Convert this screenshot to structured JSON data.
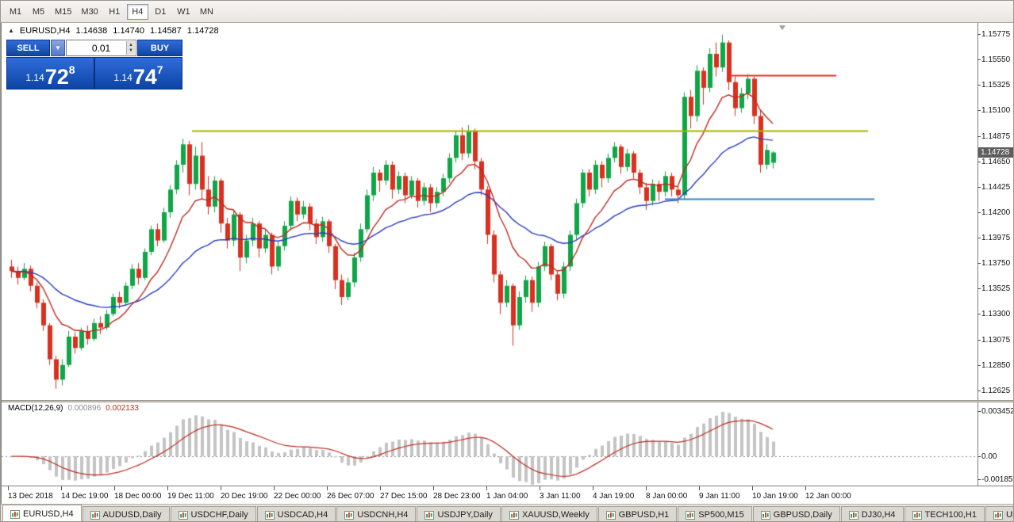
{
  "toolbar": {
    "timeframes": [
      {
        "label": "M1",
        "active": false
      },
      {
        "label": "M5",
        "active": false
      },
      {
        "label": "M15",
        "active": false
      },
      {
        "label": "M30",
        "active": false
      },
      {
        "label": "H1",
        "active": false
      },
      {
        "label": "H4",
        "active": true
      },
      {
        "label": "D1",
        "active": false
      },
      {
        "label": "W1",
        "active": false
      },
      {
        "label": "MN",
        "active": false
      }
    ]
  },
  "chart": {
    "ohlc": {
      "symbol": "EURUSD,H4",
      "open": "1.14638",
      "high": "1.14740",
      "low": "1.14587",
      "close": "1.14728"
    },
    "price_scale_labels": [
      "1.15775",
      "1.15550",
      "1.15325",
      "1.15100",
      "1.14875",
      "1.14650",
      "1.14425",
      "1.14200",
      "1.13975",
      "1.13750",
      "1.13525",
      "1.13300",
      "1.13075",
      "1.12850",
      "1.12625"
    ],
    "current_price": "1.14728",
    "axis": {
      "price_top": 1.15873,
      "price_bottom": 1.1254
    },
    "colors": {
      "up": "#0fa648",
      "down": "#d9301f",
      "ma_fast": "#bf2b20",
      "ma_slow": "#2a3cc4",
      "hline_olive": "#a9b400",
      "hline_red": "#e03226",
      "hline_blue": "#2e86c8",
      "hist": "#c4c4c4",
      "signal": "#bf2b20",
      "badge_bg": "#5e5e5e"
    },
    "overlays": [
      {
        "name": "horizontal-line-olive",
        "color_key": "hline_olive",
        "price": 1.1492,
        "i1": 28.5,
        "i2": 135
      },
      {
        "name": "horizontal-line-red",
        "color_key": "hline_red",
        "price": 1.1541,
        "i1": 113,
        "i2": 130
      },
      {
        "name": "horizontal-line-blue",
        "color_key": "hline_blue",
        "price": 1.1432,
        "i1": 103,
        "i2": 136
      }
    ],
    "ma_fast_period": 10,
    "ma_slow_period": 30
  },
  "chart_data": {
    "type": "candlestick",
    "symbol": "EURUSD",
    "timeframe": "H4",
    "candles": [
      [
        1.1372,
        1.1378,
        1.1362,
        1.1368
      ],
      [
        1.1368,
        1.1372,
        1.1356,
        1.1362
      ],
      [
        1.1362,
        1.1375,
        1.136,
        1.137
      ],
      [
        1.137,
        1.1373,
        1.135,
        1.1355
      ],
      [
        1.1355,
        1.1358,
        1.1335,
        1.134
      ],
      [
        1.134,
        1.1343,
        1.1315,
        1.132
      ],
      [
        1.132,
        1.1322,
        1.1285,
        1.129
      ],
      [
        1.129,
        1.1293,
        1.1264,
        1.1272
      ],
      [
        1.1272,
        1.129,
        1.1267,
        1.1285
      ],
      [
        1.1285,
        1.1315,
        1.1283,
        1.131
      ],
      [
        1.131,
        1.1314,
        1.1295,
        1.13
      ],
      [
        1.13,
        1.1318,
        1.1298,
        1.1315
      ],
      [
        1.1315,
        1.132,
        1.1303,
        1.1308
      ],
      [
        1.1308,
        1.1326,
        1.1306,
        1.1322
      ],
      [
        1.1322,
        1.1328,
        1.1312,
        1.1318
      ],
      [
        1.1318,
        1.1334,
        1.1316,
        1.133
      ],
      [
        1.133,
        1.1348,
        1.1328,
        1.1345
      ],
      [
        1.1345,
        1.135,
        1.1335,
        1.134
      ],
      [
        1.134,
        1.1358,
        1.1338,
        1.1355
      ],
      [
        1.1355,
        1.1374,
        1.1352,
        1.137
      ],
      [
        1.137,
        1.1375,
        1.1356,
        1.1362
      ],
      [
        1.1362,
        1.1388,
        1.136,
        1.1385
      ],
      [
        1.1385,
        1.1408,
        1.1382,
        1.1405
      ],
      [
        1.1405,
        1.141,
        1.139,
        1.1395
      ],
      [
        1.1395,
        1.1424,
        1.1393,
        1.142
      ],
      [
        1.142,
        1.1444,
        1.1415,
        1.144
      ],
      [
        1.144,
        1.1466,
        1.1436,
        1.1462
      ],
      [
        1.1462,
        1.1485,
        1.1455,
        1.148
      ],
      [
        1.148,
        1.1483,
        1.1435,
        1.1445
      ],
      [
        1.1445,
        1.1478,
        1.144,
        1.147
      ],
      [
        1.147,
        1.1482,
        1.1432,
        1.144
      ],
      [
        1.144,
        1.1452,
        1.1418,
        1.1425
      ],
      [
        1.1425,
        1.1452,
        1.142,
        1.1448
      ],
      [
        1.1448,
        1.145,
        1.1402,
        1.141
      ],
      [
        1.141,
        1.1415,
        1.1388,
        1.1395
      ],
      [
        1.1395,
        1.1422,
        1.139,
        1.1418
      ],
      [
        1.1418,
        1.142,
        1.1368,
        1.138
      ],
      [
        1.138,
        1.14,
        1.1375,
        1.1395
      ],
      [
        1.1395,
        1.1415,
        1.139,
        1.141
      ],
      [
        1.141,
        1.1412,
        1.138,
        1.1388
      ],
      [
        1.1388,
        1.1405,
        1.1384,
        1.14
      ],
      [
        1.14,
        1.1402,
        1.1365,
        1.1372
      ],
      [
        1.1372,
        1.1394,
        1.1368,
        1.139
      ],
      [
        1.139,
        1.1412,
        1.1386,
        1.1408
      ],
      [
        1.1408,
        1.1434,
        1.1404,
        1.143
      ],
      [
        1.143,
        1.1433,
        1.1412,
        1.1418
      ],
      [
        1.1418,
        1.143,
        1.1414,
        1.1425
      ],
      [
        1.1425,
        1.1428,
        1.1404,
        1.141
      ],
      [
        1.141,
        1.1414,
        1.1392,
        1.1398
      ],
      [
        1.1398,
        1.1416,
        1.1394,
        1.1412
      ],
      [
        1.1412,
        1.1414,
        1.1384,
        1.139
      ],
      [
        1.139,
        1.1392,
        1.1352,
        1.136
      ],
      [
        1.136,
        1.1365,
        1.1338,
        1.1345
      ],
      [
        1.1345,
        1.1362,
        1.1342,
        1.1358
      ],
      [
        1.1358,
        1.1384,
        1.1354,
        1.138
      ],
      [
        1.138,
        1.141,
        1.1376,
        1.1405
      ],
      [
        1.1405,
        1.144,
        1.1402,
        1.1435
      ],
      [
        1.1435,
        1.146,
        1.143,
        1.1455
      ],
      [
        1.1455,
        1.1458,
        1.1438,
        1.1448
      ],
      [
        1.1448,
        1.1466,
        1.1444,
        1.1462
      ],
      [
        1.1462,
        1.1465,
        1.1432,
        1.144
      ],
      [
        1.144,
        1.1456,
        1.1436,
        1.1452
      ],
      [
        1.1452,
        1.1455,
        1.1428,
        1.1435
      ],
      [
        1.1435,
        1.1452,
        1.1432,
        1.1448
      ],
      [
        1.1448,
        1.145,
        1.1424,
        1.143
      ],
      [
        1.143,
        1.1446,
        1.1426,
        1.1442
      ],
      [
        1.1442,
        1.1445,
        1.142,
        1.1428
      ],
      [
        1.1428,
        1.1442,
        1.1424,
        1.1438
      ],
      [
        1.1438,
        1.1454,
        1.1434,
        1.145
      ],
      [
        1.145,
        1.1472,
        1.1446,
        1.1468
      ],
      [
        1.1468,
        1.1492,
        1.1464,
        1.1488
      ],
      [
        1.1488,
        1.1495,
        1.1466,
        1.1472
      ],
      [
        1.1472,
        1.1497,
        1.1468,
        1.1492
      ],
      [
        1.1492,
        1.1494,
        1.1458,
        1.1465
      ],
      [
        1.1465,
        1.1468,
        1.1435,
        1.144
      ],
      [
        1.144,
        1.1443,
        1.1392,
        1.14
      ],
      [
        1.14,
        1.1404,
        1.1358,
        1.1365
      ],
      [
        1.1365,
        1.1368,
        1.133,
        1.134
      ],
      [
        1.134,
        1.136,
        1.1336,
        1.1355
      ],
      [
        1.1355,
        1.1357,
        1.1302,
        1.132
      ],
      [
        1.132,
        1.135,
        1.1316,
        1.1345
      ],
      [
        1.1345,
        1.1364,
        1.134,
        1.136
      ],
      [
        1.136,
        1.1363,
        1.1332,
        1.134
      ],
      [
        1.134,
        1.1376,
        1.1336,
        1.1372
      ],
      [
        1.1372,
        1.1394,
        1.1368,
        1.139
      ],
      [
        1.139,
        1.1392,
        1.136,
        1.1365
      ],
      [
        1.1365,
        1.1368,
        1.1342,
        1.1348
      ],
      [
        1.1348,
        1.1376,
        1.1344,
        1.1372
      ],
      [
        1.1372,
        1.1404,
        1.1368,
        1.14
      ],
      [
        1.14,
        1.1432,
        1.1396,
        1.1428
      ],
      [
        1.1428,
        1.1458,
        1.1424,
        1.1455
      ],
      [
        1.1455,
        1.1458,
        1.1434,
        1.144
      ],
      [
        1.144,
        1.1466,
        1.1436,
        1.1462
      ],
      [
        1.1462,
        1.1465,
        1.1442,
        1.145
      ],
      [
        1.145,
        1.1472,
        1.1446,
        1.1468
      ],
      [
        1.1468,
        1.1482,
        1.1464,
        1.1478
      ],
      [
        1.1478,
        1.148,
        1.1454,
        1.146
      ],
      [
        1.146,
        1.1476,
        1.1456,
        1.1472
      ],
      [
        1.1472,
        1.1474,
        1.145,
        1.1455
      ],
      [
        1.1455,
        1.1458,
        1.1436,
        1.1442
      ],
      [
        1.1442,
        1.1446,
        1.1422,
        1.143
      ],
      [
        1.143,
        1.1449,
        1.1426,
        1.1445
      ],
      [
        1.1445,
        1.1448,
        1.143,
        1.1438
      ],
      [
        1.1438,
        1.1456,
        1.1434,
        1.1452
      ],
      [
        1.1452,
        1.1455,
        1.1434,
        1.144
      ],
      [
        1.144,
        1.1444,
        1.1428,
        1.1435
      ],
      [
        1.1435,
        1.1526,
        1.1432,
        1.1522
      ],
      [
        1.1522,
        1.1528,
        1.1494,
        1.1505
      ],
      [
        1.1505,
        1.155,
        1.15,
        1.1545
      ],
      [
        1.1545,
        1.1548,
        1.1515,
        1.153
      ],
      [
        1.153,
        1.1565,
        1.1526,
        1.156
      ],
      [
        1.156,
        1.157,
        1.154,
        1.1548
      ],
      [
        1.1548,
        1.1577,
        1.1544,
        1.157
      ],
      [
        1.157,
        1.1572,
        1.1528,
        1.1535
      ],
      [
        1.1535,
        1.154,
        1.1505,
        1.1512
      ],
      [
        1.1512,
        1.153,
        1.1508,
        1.1525
      ],
      [
        1.1525,
        1.1542,
        1.152,
        1.1538
      ],
      [
        1.1538,
        1.154,
        1.1498,
        1.1505
      ],
      [
        1.1505,
        1.151,
        1.1455,
        1.1462
      ],
      [
        1.1462,
        1.148,
        1.1458,
        1.1475
      ],
      [
        1.14638,
        1.1474,
        1.14587,
        1.14728
      ]
    ]
  },
  "macd": {
    "label": "MACD(12,26,9)",
    "value_main": "0.000896",
    "value_signal": "0.002133",
    "scale_labels": [
      "0.003452",
      "0.00",
      "-0.001851"
    ],
    "fast": 12,
    "slow": 26,
    "signal": 9
  },
  "time_axis": {
    "labels": [
      "13 Dec 2018",
      "14 Dec 19:00",
      "18 Dec 00:00",
      "19 Dec 11:00",
      "20 Dec 19:00",
      "22 Dec 00:00",
      "26 Dec 07:00",
      "27 Dec 15:00",
      "28 Dec 23:00",
      "1 Jan 04:00",
      "3 Jan 11:00",
      "4 Jan 19:00",
      "8 Jan 00:00",
      "9 Jan 11:00",
      "10 Jan 19:00",
      "12 Jan 00:00"
    ]
  },
  "tabs": [
    {
      "label": "EURUSD,H4",
      "active": true
    },
    {
      "label": "AUDUSD,Daily",
      "active": false
    },
    {
      "label": "USDCHF,Daily",
      "active": false
    },
    {
      "label": "USDCAD,H4",
      "active": false
    },
    {
      "label": "USDCNH,H4",
      "active": false
    },
    {
      "label": "USDJPY,Daily",
      "active": false
    },
    {
      "label": "XAUUSD,Weekly",
      "active": false
    },
    {
      "label": "GBPUSD,H1",
      "active": false
    },
    {
      "label": "SP500,M15",
      "active": false
    },
    {
      "label": "GBPUSD,Daily",
      "active": false
    },
    {
      "label": "DJ30,H4",
      "active": false
    },
    {
      "label": "TECH100,H1",
      "active": false
    },
    {
      "label": "UKOil,H1",
      "active": false
    },
    {
      "label": "U",
      "active": false
    }
  ],
  "trade_panel": {
    "sell_label": "SELL",
    "buy_label": "BUY",
    "volume": "0.01",
    "sell_price_small": "1.14",
    "sell_price_big": "72",
    "sell_price_sup": "8",
    "buy_price_small": "1.14",
    "buy_price_big": "74",
    "buy_price_sup": "7",
    "dropdown_caret": "▼",
    "spin_up": "▲",
    "spin_down": "▼",
    "toggle_glyph": "▲"
  }
}
